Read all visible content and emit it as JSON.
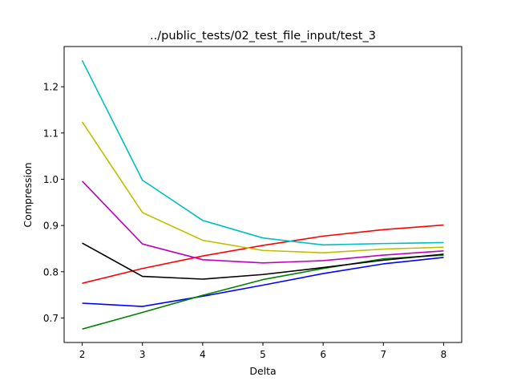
{
  "chart_data": {
    "type": "line",
    "title": "../public_tests/02_test_file_input/test_3",
    "xlabel": "Delta",
    "ylabel": "Compression",
    "x": [
      2,
      3,
      4,
      5,
      6,
      7,
      8
    ],
    "xlim": [
      1.7,
      8.3
    ],
    "ylim": [
      0.647,
      1.287
    ],
    "xticks": [
      2,
      3,
      4,
      5,
      6,
      7,
      8
    ],
    "yticks": [
      0.7,
      0.8,
      0.9,
      1.0,
      1.1,
      1.2
    ],
    "ytick_labels": [
      "0.7",
      "0.8",
      "0.9",
      "1.0",
      "1.1",
      "1.2"
    ],
    "grid": false,
    "legend": "none",
    "series": [
      {
        "color": "#0000ff",
        "values": [
          0.732,
          0.725,
          0.747,
          0.771,
          0.796,
          0.817,
          0.831
        ]
      },
      {
        "color": "#008000",
        "values": [
          0.676,
          0.712,
          0.749,
          0.783,
          0.807,
          0.828,
          0.836
        ]
      },
      {
        "color": "#ff0000",
        "values": [
          0.775,
          0.807,
          0.834,
          0.857,
          0.877,
          0.891,
          0.901
        ]
      },
      {
        "color": "#00bfbf",
        "values": [
          1.257,
          0.998,
          0.911,
          0.873,
          0.858,
          0.861,
          0.863
        ]
      },
      {
        "color": "#bf00bf",
        "values": [
          0.996,
          0.86,
          0.826,
          0.819,
          0.824,
          0.836,
          0.845
        ]
      },
      {
        "color": "#bfbf00",
        "values": [
          1.124,
          0.928,
          0.868,
          0.846,
          0.841,
          0.849,
          0.853
        ]
      },
      {
        "color": "#000000",
        "values": [
          0.862,
          0.79,
          0.784,
          0.794,
          0.809,
          0.825,
          0.838
        ]
      }
    ]
  }
}
